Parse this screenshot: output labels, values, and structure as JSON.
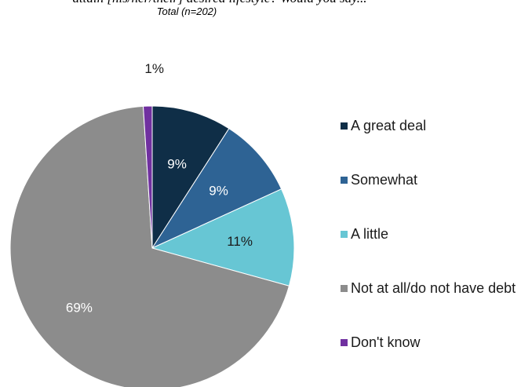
{
  "header": {
    "question_fragment": "attain [his/her/their] desired lifestyle? Would you say...",
    "base_label": "Total (n=202)"
  },
  "chart_data": {
    "type": "pie",
    "title": "",
    "subtitle": "Total (n=202)",
    "start_angle_deg": 0,
    "direction": "clockwise",
    "legend_position": "right",
    "slices": [
      {
        "label": "A great deal",
        "value": 9,
        "display": "9%",
        "color": "#0f2e47",
        "label_color": "#ffffff"
      },
      {
        "label": "Somewhat",
        "value": 9,
        "display": "9%",
        "color": "#2e6394",
        "label_color": "#ffffff"
      },
      {
        "label": "A little",
        "value": 11,
        "display": "11%",
        "color": "#67c6d4",
        "label_color": "#1a1a1a"
      },
      {
        "label": "Not at all/do not have debt",
        "value": 69,
        "display": "69%",
        "color": "#8c8c8c",
        "label_color": "#ffffff"
      },
      {
        "label": "Don't know",
        "value": 1,
        "display": "1%",
        "color": "#7030a0",
        "label_color": "#1a1a1a"
      }
    ]
  }
}
